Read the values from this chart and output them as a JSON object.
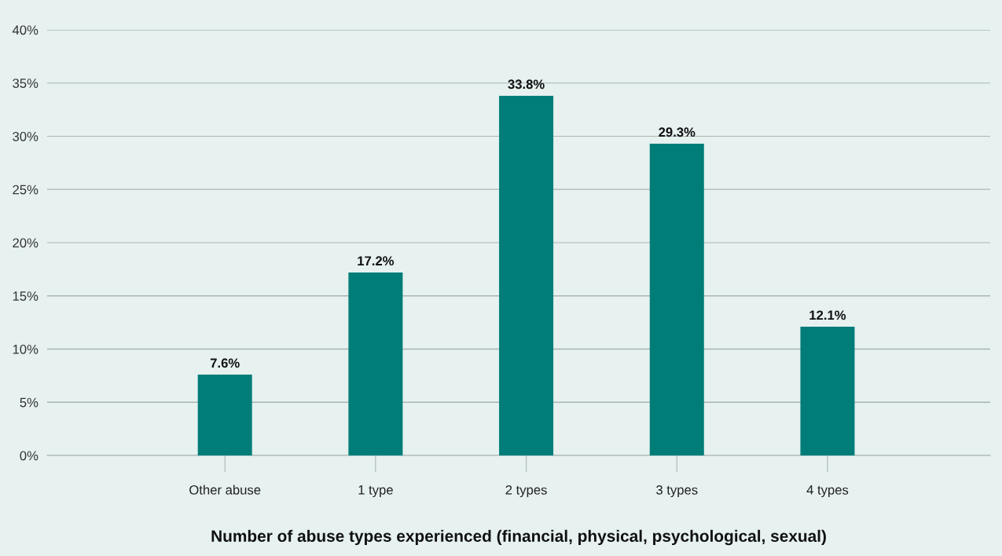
{
  "chart_data": {
    "type": "bar",
    "xlabel": "Number of abuse types experienced (financial, physical, psychological, sexual)",
    "categories": [
      "Other abuse",
      "1 type",
      "2 types",
      "3 types",
      "4 types"
    ],
    "values": [
      7.6,
      17.2,
      33.8,
      29.3,
      12.1
    ],
    "value_labels": [
      "7.6%",
      "17.2%",
      "33.8%",
      "29.3%",
      "12.1%"
    ],
    "color": "#007d78",
    "ylim": [
      0,
      40
    ],
    "yticks": [
      {
        "value": 0,
        "label": "0%"
      },
      {
        "value": 5,
        "label": "5%"
      },
      {
        "value": 10,
        "label": "10%"
      },
      {
        "value": 15,
        "label": "15%"
      },
      {
        "value": 20,
        "label": "20%"
      },
      {
        "value": 25,
        "label": "25%"
      },
      {
        "value": 30,
        "label": "30%"
      },
      {
        "value": 35,
        "label": "35%"
      },
      {
        "value": 40,
        "label": "40%"
      }
    ],
    "grid": "y"
  }
}
